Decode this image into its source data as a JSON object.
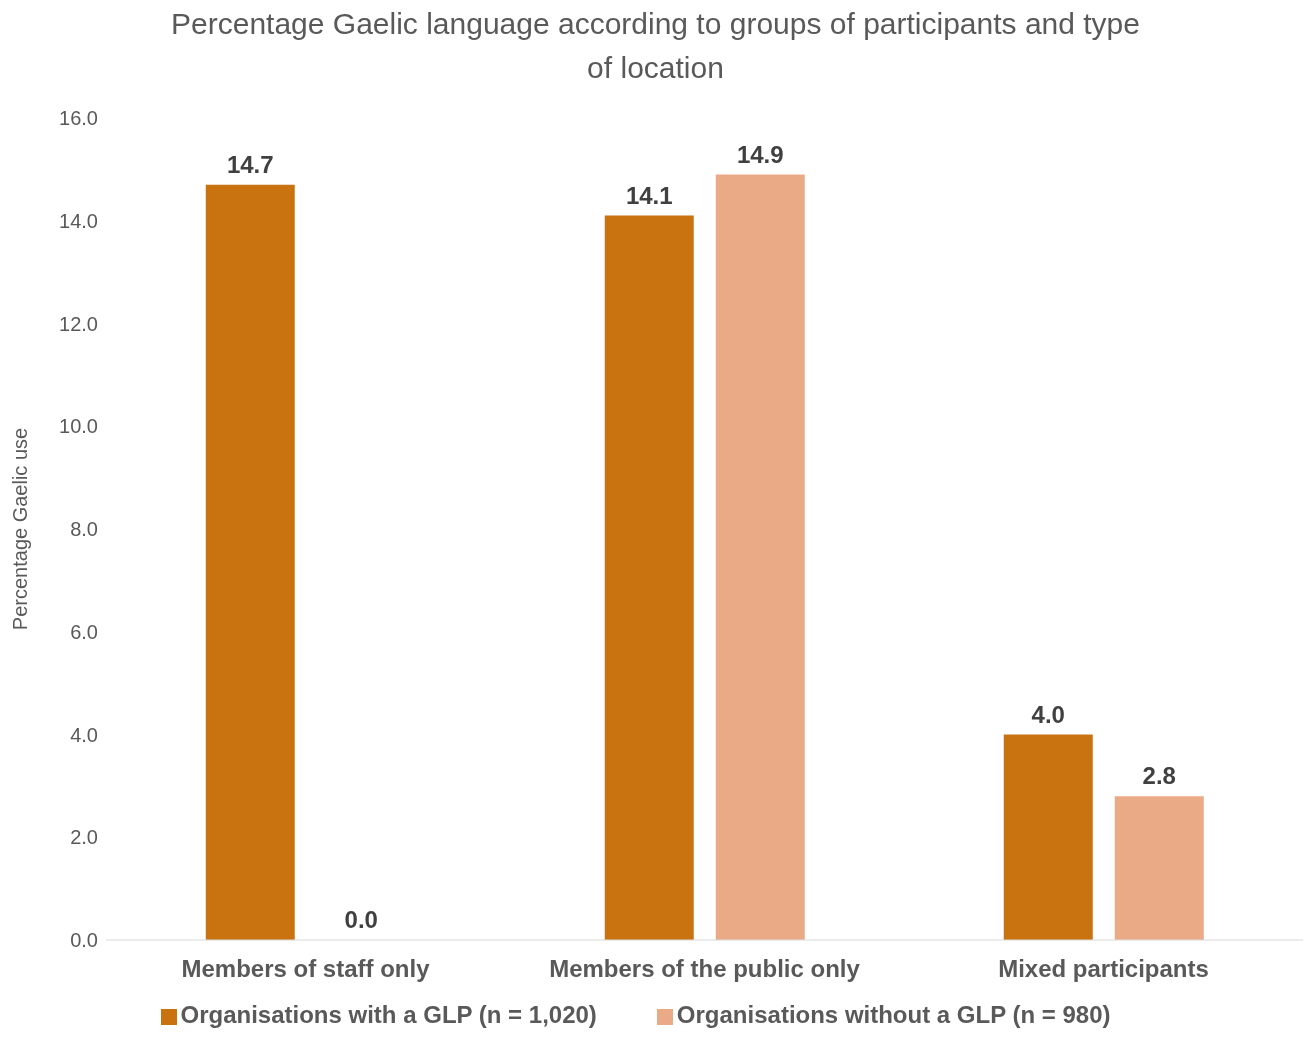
{
  "chart_data": {
    "type": "bar",
    "title": "Percentage Gaelic language according to groups of participants and type of location",
    "ylabel": "Percentage Gaelic use",
    "categories": [
      "Members of staff only",
      "Members of the public only",
      "Mixed participants"
    ],
    "series": [
      {
        "name": "Organisations with a GLP (n = 1,020)",
        "color": "#c87310",
        "values": [
          14.7,
          14.1,
          4.0
        ],
        "value_labels": [
          "14.7",
          "14.1",
          "4.0"
        ]
      },
      {
        "name": "Organisations without a GLP (n = 980)",
        "color": "#eaaa85",
        "values": [
          0.0,
          14.9,
          2.8
        ],
        "value_labels": [
          "0.0",
          "14.9",
          "2.8"
        ]
      }
    ],
    "ylim": [
      0,
      16
    ],
    "yticks": [
      {
        "value": 0,
        "label": "0.0"
      },
      {
        "value": 2,
        "label": "2.0"
      },
      {
        "value": 4,
        "label": "4.0"
      },
      {
        "value": 6,
        "label": "6.0"
      },
      {
        "value": 8,
        "label": "8.0"
      },
      {
        "value": 10,
        "label": "10.0"
      },
      {
        "value": 12,
        "label": "12.0"
      },
      {
        "value": 14,
        "label": "14.0"
      },
      {
        "value": 16,
        "label": "16.0"
      }
    ],
    "grid": false,
    "legend": "bottom"
  }
}
